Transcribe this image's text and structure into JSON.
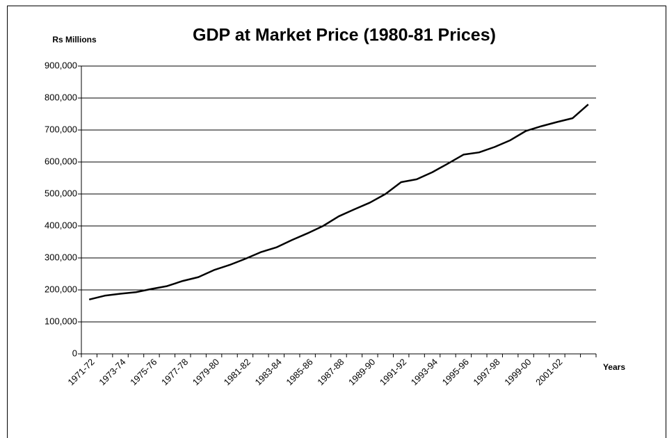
{
  "chart_data": {
    "type": "line",
    "title": "GDP at Market Price (1980-81 Prices)",
    "y_label": "Rs Millions",
    "x_label": "Years",
    "categories": [
      "1971-72",
      null,
      "1973-74",
      null,
      "1975-76",
      null,
      "1977-78",
      null,
      "1979-80",
      null,
      "1981-82",
      null,
      "1983-84",
      null,
      "1985-86",
      null,
      "1987-88",
      null,
      "1989-90",
      null,
      "1991-92",
      null,
      "1993-94",
      null,
      "1995-96",
      null,
      "1997-98",
      null,
      "1999-00",
      null,
      "2001-02",
      null,
      null
    ],
    "series": [
      {
        "name": "GDP",
        "color": "#000000",
        "values": [
          170000,
          182000,
          188000,
          193000,
          203000,
          212000,
          228000,
          240000,
          262000,
          278000,
          297000,
          318000,
          333000,
          356000,
          377000,
          400000,
          430000,
          452000,
          473000,
          500000,
          537000,
          546000,
          568000,
          595000,
          623000,
          630000,
          647000,
          668000,
          697000,
          712000,
          725000,
          737000,
          780000
        ]
      }
    ],
    "ylim": [
      0,
      900000
    ],
    "yticks": [
      0,
      {
        "value": 100000,
        "label": "100,000"
      },
      {
        "value": 200000,
        "label": "200,000"
      },
      {
        "value": 300000,
        "label": "300,000"
      },
      {
        "value": 400000,
        "label": "400,000"
      },
      {
        "value": 500000,
        "label": "500,000"
      },
      {
        "value": 600000,
        "label": "600,000"
      },
      {
        "value": 700000,
        "label": "700,000"
      },
      {
        "value": 800000,
        "label": "800,000"
      },
      {
        "value": 900000,
        "label": "900,000"
      }
    ],
    "grid": true
  }
}
